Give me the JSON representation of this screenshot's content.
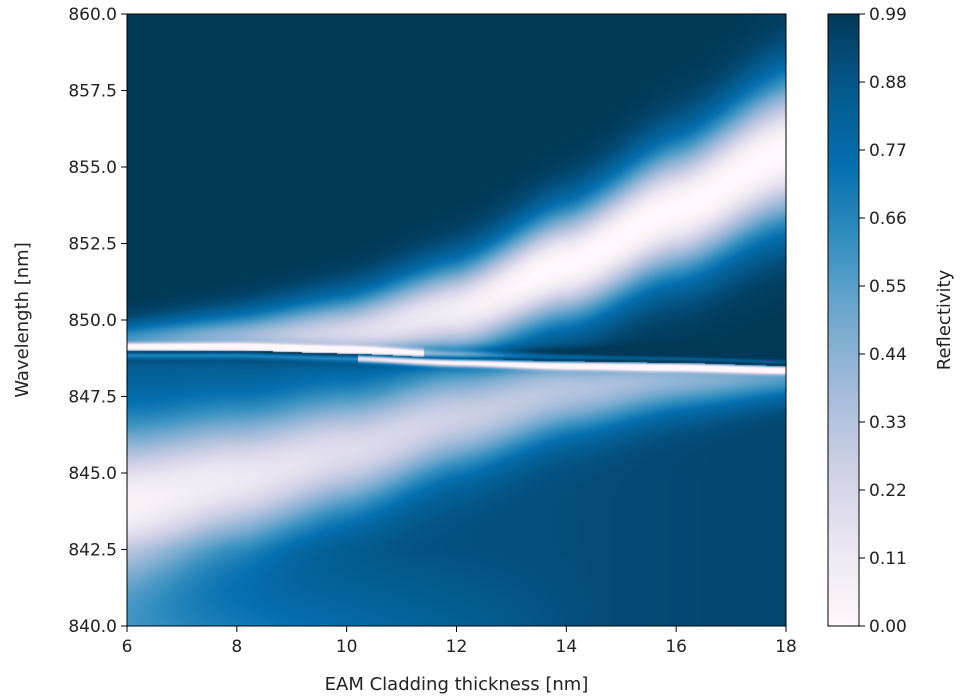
{
  "chart_data": {
    "type": "heatmap",
    "title": "",
    "xlabel": "EAM Cladding thickness [nm]",
    "ylabel": "Wavelength [nm]",
    "xlim": [
      6,
      18
    ],
    "ylim": [
      840.0,
      860.0
    ],
    "x_ticks": [
      6,
      8,
      10,
      12,
      14,
      16,
      18
    ],
    "x_tick_labels": [
      "6",
      "8",
      "10",
      "12",
      "14",
      "16",
      "18"
    ],
    "y_ticks": [
      840.0,
      842.5,
      845.0,
      847.5,
      850.0,
      852.5,
      855.0,
      857.5,
      860.0
    ],
    "y_tick_labels": [
      "840.0",
      "842.5",
      "845.0",
      "847.5",
      "850.0",
      "852.5",
      "855.0",
      "857.5",
      "860.0"
    ],
    "colorbar": {
      "label": "Reflectivity",
      "range": [
        0.0,
        0.99
      ],
      "ticks": [
        0.0,
        0.11,
        0.22,
        0.33,
        0.44,
        0.55,
        0.66,
        0.77,
        0.88,
        0.99
      ],
      "tick_labels": [
        "0.00",
        "0.11",
        "0.22",
        "0.33",
        "0.44",
        "0.55",
        "0.66",
        "0.77",
        "0.88",
        "0.99"
      ],
      "colormap": "PuBu"
    },
    "colormap_stops": [
      "#fff7fb",
      "#ece7f2",
      "#d0d1e6",
      "#a6bddb",
      "#74a9cf",
      "#3690c0",
      "#0570b0",
      "#045a8d",
      "#023858"
    ],
    "features": [
      {
        "kind": "narrow reflectivity dip",
        "x": [
          6,
          8,
          10,
          12,
          14,
          16,
          18
        ],
        "wavelength": [
          849.0,
          849.0,
          848.9,
          848.75,
          848.65,
          848.6,
          848.5
        ]
      },
      {
        "kind": "broad upper dip",
        "x": [
          6,
          8,
          10,
          12,
          14,
          16,
          18
        ],
        "wavelength": [
          849.1,
          849.2,
          849.5,
          850.3,
          851.8,
          853.6,
          855.5
        ]
      },
      {
        "kind": "broad lower dip",
        "x": [
          6,
          8,
          10,
          12,
          14,
          16,
          18
        ],
        "wavelength": [
          844.0,
          844.8,
          845.7,
          846.8,
          847.7,
          848.2,
          848.4
        ]
      }
    ]
  }
}
